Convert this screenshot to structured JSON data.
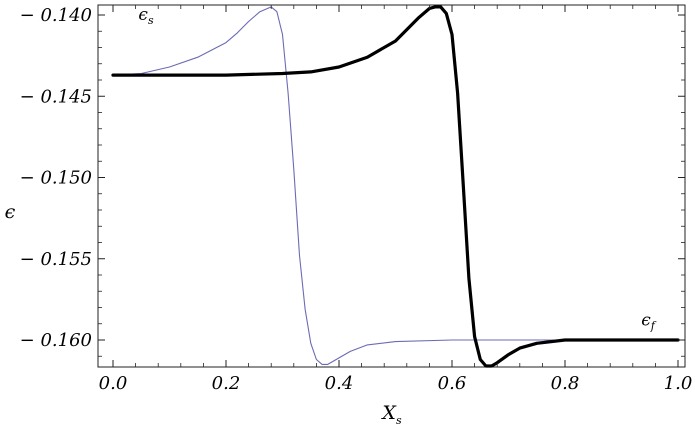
{
  "chart_data": {
    "type": "line",
    "title": "",
    "xlabel": "X",
    "xlabel_subscript": "s",
    "ylabel": "ϵ",
    "xlim": [
      0.0,
      1.0
    ],
    "ylim": [
      -0.1615,
      -0.1392
    ],
    "xticks": [
      0.0,
      0.2,
      0.4,
      0.6,
      0.8,
      1.0
    ],
    "xtick_labels": [
      "0.0",
      "0.2",
      "0.4",
      "0.6",
      "0.8",
      "1.0"
    ],
    "yticks": [
      -0.14,
      -0.145,
      -0.15,
      -0.155,
      -0.16
    ],
    "ytick_labels": [
      "− 0.140",
      "− 0.145",
      "− 0.150",
      "− 0.155",
      "− 0.160"
    ],
    "grid": false,
    "frame": true,
    "series": [
      {
        "color": "#6b6bb5",
        "line": "thin",
        "x": [
          0.0,
          0.05,
          0.1,
          0.15,
          0.2,
          0.22,
          0.24,
          0.26,
          0.28,
          0.29,
          0.3,
          0.31,
          0.32,
          0.33,
          0.34,
          0.35,
          0.36,
          0.37,
          0.38,
          0.39,
          0.4,
          0.42,
          0.45,
          0.5,
          0.6,
          0.7,
          0.8,
          0.9,
          1.0
        ],
        "y": [
          -0.1437,
          -0.1436,
          -0.1432,
          -0.1426,
          -0.1417,
          -0.1411,
          -0.1404,
          -0.1398,
          -0.1395,
          -0.1398,
          -0.1412,
          -0.1448,
          -0.1495,
          -0.1548,
          -0.1581,
          -0.1602,
          -0.1612,
          -0.1615,
          -0.1615,
          -0.1613,
          -0.1611,
          -0.1607,
          -0.1603,
          -0.1601,
          -0.16,
          -0.16,
          -0.16,
          -0.16,
          -0.16
        ]
      },
      {
        "color": "#000000",
        "line": "thick",
        "x": [
          0.0,
          0.1,
          0.2,
          0.3,
          0.35,
          0.4,
          0.45,
          0.5,
          0.52,
          0.54,
          0.56,
          0.57,
          0.58,
          0.59,
          0.6,
          0.61,
          0.62,
          0.63,
          0.64,
          0.65,
          0.66,
          0.67,
          0.68,
          0.7,
          0.72,
          0.75,
          0.8,
          0.9,
          1.0
        ],
        "y": [
          -0.1437,
          -0.1437,
          -0.1437,
          -0.1436,
          -0.1435,
          -0.1432,
          -0.1426,
          -0.1416,
          -0.1409,
          -0.1402,
          -0.1396,
          -0.1395,
          -0.1395,
          -0.1399,
          -0.1412,
          -0.1448,
          -0.1505,
          -0.1562,
          -0.1598,
          -0.1612,
          -0.1616,
          -0.1616,
          -0.1614,
          -0.1609,
          -0.1605,
          -0.1602,
          -0.16,
          -0.16,
          -0.16
        ]
      }
    ],
    "annotations": [
      {
        "text": "ϵ",
        "subscript": "s",
        "x": 0.045,
        "y": -0.1403
      },
      {
        "text": "ϵ",
        "subscript": "f",
        "x": 0.935,
        "y": -0.1591
      }
    ]
  }
}
